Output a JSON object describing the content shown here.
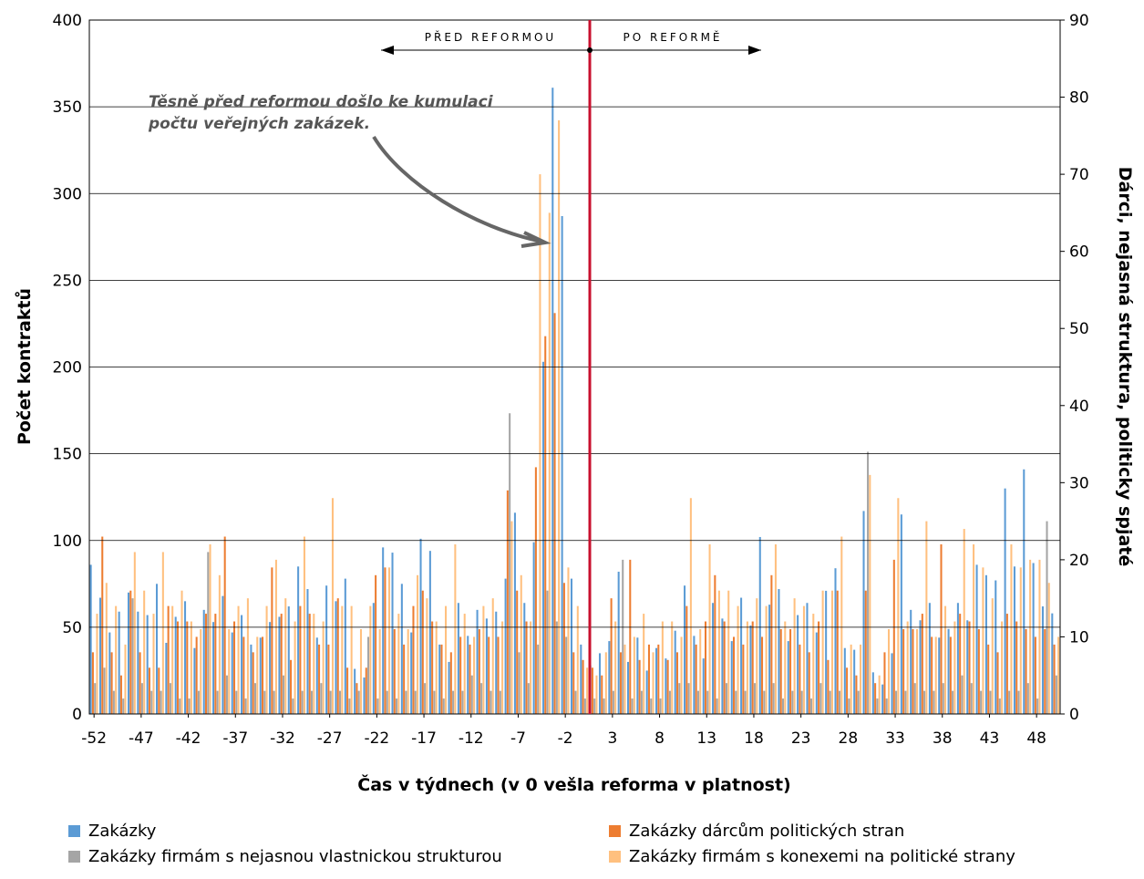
{
  "chart_data": {
    "type": "bar",
    "annotation": "Těsně před reformou došlo ke kumulaci počtu veřejných zakázek.",
    "before_label": "PŘED REFORMOU",
    "after_label": "PO REFORMĚ",
    "xlabel": "Čas v týdnech (v 0 vešla reforma v platnost)",
    "ylabel": "Počet kontraktů",
    "y2label": "Dárci, nejasná struktura, politicky spjaté",
    "x": [
      -52,
      -51,
      -50,
      -49,
      -48,
      -47,
      -46,
      -45,
      -44,
      -43,
      -42,
      -41,
      -40,
      -39,
      -38,
      -37,
      -36,
      -35,
      -34,
      -33,
      -32,
      -31,
      -30,
      -29,
      -28,
      -27,
      -26,
      -25,
      -24,
      -23,
      -22,
      -21,
      -20,
      -19,
      -18,
      -17,
      -16,
      -15,
      -14,
      -13,
      -12,
      -11,
      -10,
      -9,
      -8,
      -7,
      -6,
      -5,
      -4,
      -3,
      -2,
      -1,
      0,
      1,
      2,
      3,
      4,
      5,
      6,
      7,
      8,
      9,
      10,
      11,
      12,
      13,
      14,
      15,
      16,
      17,
      18,
      19,
      20,
      21,
      22,
      23,
      24,
      25,
      26,
      27,
      28,
      29,
      30,
      31,
      32,
      33,
      34,
      35,
      36,
      37,
      38,
      39,
      40,
      41,
      42,
      43,
      44,
      45,
      46,
      47,
      48,
      49,
      50
    ],
    "xticks": [
      -52,
      -47,
      -42,
      -37,
      -32,
      -27,
      -22,
      -17,
      -12,
      -7,
      -2,
      3,
      8,
      13,
      18,
      23,
      28,
      33,
      38,
      43,
      48
    ],
    "xlim": [
      -52.5,
      50.5
    ],
    "ylim": [
      0,
      400
    ],
    "yticks": [
      0,
      50,
      100,
      150,
      200,
      250,
      300,
      350,
      400
    ],
    "y2lim": [
      0,
      90
    ],
    "y2ticks": [
      0,
      10,
      20,
      30,
      40,
      50,
      60,
      70,
      80,
      90
    ],
    "grid": true,
    "legend": "bottom",
    "series": [
      {
        "name": "Zakázky",
        "color": "#5b9bd5",
        "values": [
          86,
          67,
          47,
          59,
          70,
          59,
          57,
          75,
          41,
          56,
          65,
          38,
          60,
          53,
          68,
          47,
          57,
          40,
          44,
          53,
          56,
          62,
          85,
          72,
          44,
          74,
          65,
          78,
          26,
          21,
          64,
          96,
          93,
          75,
          47,
          101,
          94,
          40,
          30,
          64,
          45,
          60,
          55,
          59,
          78,
          116,
          64,
          99,
          203,
          361,
          287,
          78,
          40,
          28,
          35,
          42,
          82,
          30,
          44,
          25,
          38,
          32,
          48,
          74,
          45,
          32,
          64,
          55,
          42,
          67,
          51,
          102,
          63,
          72,
          42,
          57,
          64,
          47,
          71,
          84,
          38,
          37,
          117,
          24,
          17,
          35,
          115,
          60,
          54,
          64,
          44,
          49,
          64,
          54,
          86,
          80,
          77,
          130,
          85,
          141,
          87,
          62,
          58
        ]
      },
      {
        "name": "Zakázky dárcům politických stran",
        "color": "#ed7d31",
        "values": [
          8,
          23,
          8,
          5,
          16,
          8,
          6,
          6,
          14,
          12,
          12,
          10,
          13,
          13,
          23,
          12,
          10,
          8,
          10,
          19,
          13,
          7,
          14,
          13,
          9,
          9,
          15,
          6,
          4,
          6,
          18,
          19,
          11,
          9,
          14,
          16,
          12,
          9,
          8,
          10,
          9,
          11,
          10,
          10,
          29,
          16,
          12,
          32,
          49,
          52,
          17,
          8,
          7,
          6,
          5,
          15,
          8,
          20,
          7,
          9,
          9,
          7,
          8,
          14,
          9,
          12,
          18,
          12,
          10,
          9,
          12,
          10,
          18,
          11,
          11,
          9,
          8,
          12,
          7,
          16,
          6,
          5,
          16,
          4,
          8,
          20,
          11,
          11,
          13,
          10,
          22,
          10,
          13,
          12,
          11,
          9,
          8,
          13,
          12,
          11,
          10,
          11,
          9
        ]
      },
      {
        "name": "Zakázky firmám s nejasnou vlastnickou strukturou",
        "color": "#a5a5a5",
        "values": [
          4,
          6,
          3,
          2,
          15,
          4,
          3,
          3,
          4,
          2,
          2,
          3,
          21,
          3,
          5,
          3,
          2,
          4,
          3,
          3,
          5,
          2,
          3,
          3,
          4,
          3,
          3,
          2,
          3,
          10,
          2,
          3,
          2,
          3,
          3,
          4,
          3,
          2,
          3,
          3,
          5,
          4,
          3,
          3,
          39,
          8,
          4,
          9,
          16,
          12,
          10,
          3,
          2,
          2,
          2,
          3,
          20,
          2,
          3,
          2,
          2,
          3,
          4,
          4,
          3,
          3,
          2,
          4,
          3,
          3,
          4,
          3,
          4,
          2,
          3,
          3,
          2,
          4,
          3,
          3,
          2,
          3,
          34,
          2,
          2,
          3,
          3,
          4,
          3,
          3,
          4,
          3,
          5,
          4,
          3,
          3,
          2,
          3,
          3,
          4,
          2,
          25,
          5
        ]
      },
      {
        "name": "Zakázky firmám s konexemi na politické strany",
        "color": "#ffc07f",
        "values": [
          13,
          17,
          14,
          9,
          21,
          16,
          13,
          21,
          14,
          16,
          12,
          11,
          22,
          18,
          11,
          14,
          15,
          10,
          14,
          20,
          15,
          12,
          23,
          13,
          12,
          28,
          14,
          14,
          11,
          14,
          11,
          19,
          13,
          11,
          18,
          15,
          12,
          14,
          22,
          13,
          10,
          14,
          15,
          12,
          25,
          18,
          12,
          70,
          65,
          77,
          19,
          14,
          6,
          5,
          8,
          12,
          9,
          10,
          13,
          8,
          12,
          12,
          10,
          28,
          11,
          22,
          16,
          16,
          14,
          12,
          15,
          14,
          22,
          12,
          15,
          14,
          13,
          16,
          16,
          23,
          9,
          9,
          31,
          5,
          11,
          28,
          12,
          11,
          25,
          10,
          14,
          12,
          24,
          22,
          19,
          15,
          12,
          22,
          19,
          20,
          20,
          17,
          10
        ]
      }
    ]
  }
}
